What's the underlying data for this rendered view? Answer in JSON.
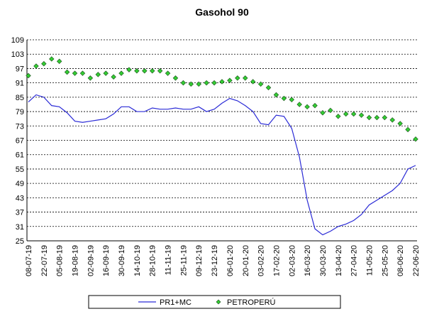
{
  "chart_data": {
    "type": "line",
    "title": "Gasohol 90",
    "categories": [
      "08-07-19",
      null,
      "22-07-19",
      null,
      "05-08-19",
      null,
      "19-08-19",
      null,
      "02-09-19",
      null,
      "16-09-19",
      null,
      "30-09-19",
      null,
      "14-10-19",
      null,
      "28-10-19",
      null,
      "11-11-19",
      null,
      "25-11-19",
      null,
      "09-12-19",
      null,
      "23-12-19",
      null,
      "06-01-20",
      null,
      "20-01-20",
      null,
      "03-02-20",
      null,
      "17-02-20",
      null,
      "02-03-20",
      null,
      "16-03-20",
      null,
      "30-03-20",
      null,
      "13-04-20",
      null,
      "27-04-20",
      null,
      "11-05-20",
      null,
      "25-05-20",
      null,
      "08-06-20",
      null,
      "22-06-20"
    ],
    "series": [
      {
        "name": "PR1+MC",
        "color": "#2a2ad6",
        "style": "line",
        "values": [
          83,
          86,
          85,
          81.5,
          81,
          78.5,
          75,
          74.5,
          75,
          75.5,
          76,
          78,
          81,
          81,
          79,
          79,
          80.5,
          80,
          80,
          80.5,
          80,
          80,
          81,
          79,
          80,
          82.5,
          84.5,
          83.5,
          81.5,
          79,
          74,
          73.5,
          77.5,
          77,
          72,
          60,
          42,
          30,
          27.5,
          29,
          31,
          32,
          33.5,
          36,
          40,
          42,
          44,
          46,
          49,
          55,
          56.5
        ]
      },
      {
        "name": "PETROPERÚ",
        "color": "#33cc33",
        "style": "markers",
        "values": [
          94,
          98,
          99,
          101,
          100,
          95.5,
          95,
          95,
          93,
          94.5,
          95,
          93.5,
          95,
          96.5,
          96,
          96,
          96,
          96,
          95,
          93,
          91,
          90.5,
          90.5,
          91,
          91,
          91.5,
          92,
          93,
          93,
          91.5,
          90.5,
          89,
          86,
          84.5,
          84,
          82,
          81,
          81.5,
          78.5,
          79.5,
          77,
          78,
          78,
          77.5,
          76.5,
          76.5,
          76.5,
          75.5,
          74,
          71.5,
          67.5
        ]
      }
    ],
    "ylim": [
      25,
      109
    ],
    "yticks": [
      25,
      31,
      37,
      43,
      49,
      55,
      61,
      67,
      73,
      79,
      85,
      91,
      97,
      103,
      109
    ],
    "grid": true
  }
}
